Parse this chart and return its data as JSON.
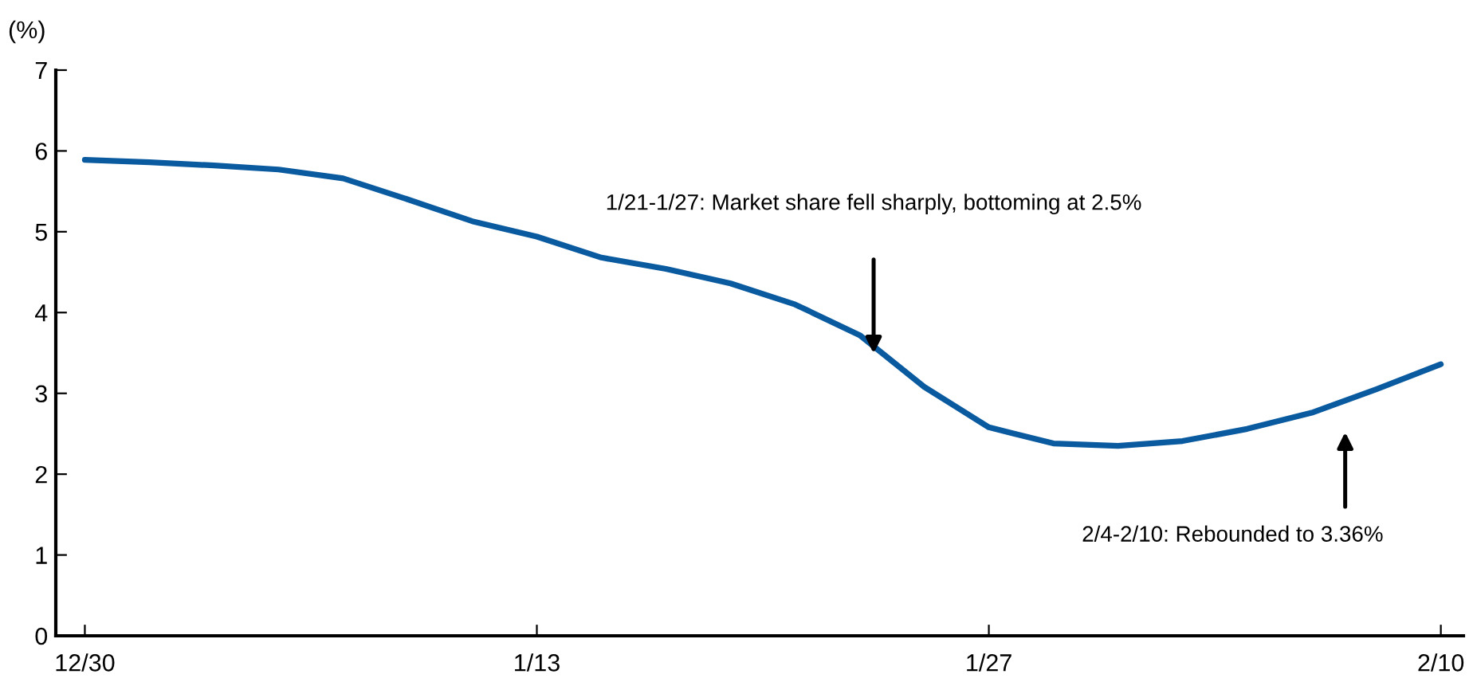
{
  "chart_data": {
    "type": "line",
    "ylabel": "(%)",
    "categories": [
      "12/30",
      null,
      null,
      null,
      null,
      null,
      null,
      "1/13",
      null,
      null,
      null,
      null,
      null,
      null,
      "1/27",
      null,
      null,
      null,
      null,
      null,
      null,
      "2/10"
    ],
    "series": [
      {
        "color": "#0a5aa0",
        "values": [
          5.89,
          5.86,
          5.82,
          5.77,
          5.66,
          5.4,
          5.13,
          4.94,
          4.68,
          4.54,
          4.36,
          4.1,
          3.72,
          3.08,
          2.58,
          2.38,
          2.35,
          2.41,
          2.56,
          2.76,
          3.05,
          3.36
        ]
      }
    ],
    "ylim": [
      0,
      7
    ],
    "yticks": [
      0,
      1,
      2,
      3,
      4,
      5,
      6,
      7
    ],
    "grid": false,
    "legend": false,
    "marker": "none",
    "line_style": "solid",
    "annotations": [
      "1/21-1/27: Market share fell sharply, bottoming at 2.5%",
      "2/4-2/10: Rebounded to 3.36%"
    ]
  }
}
